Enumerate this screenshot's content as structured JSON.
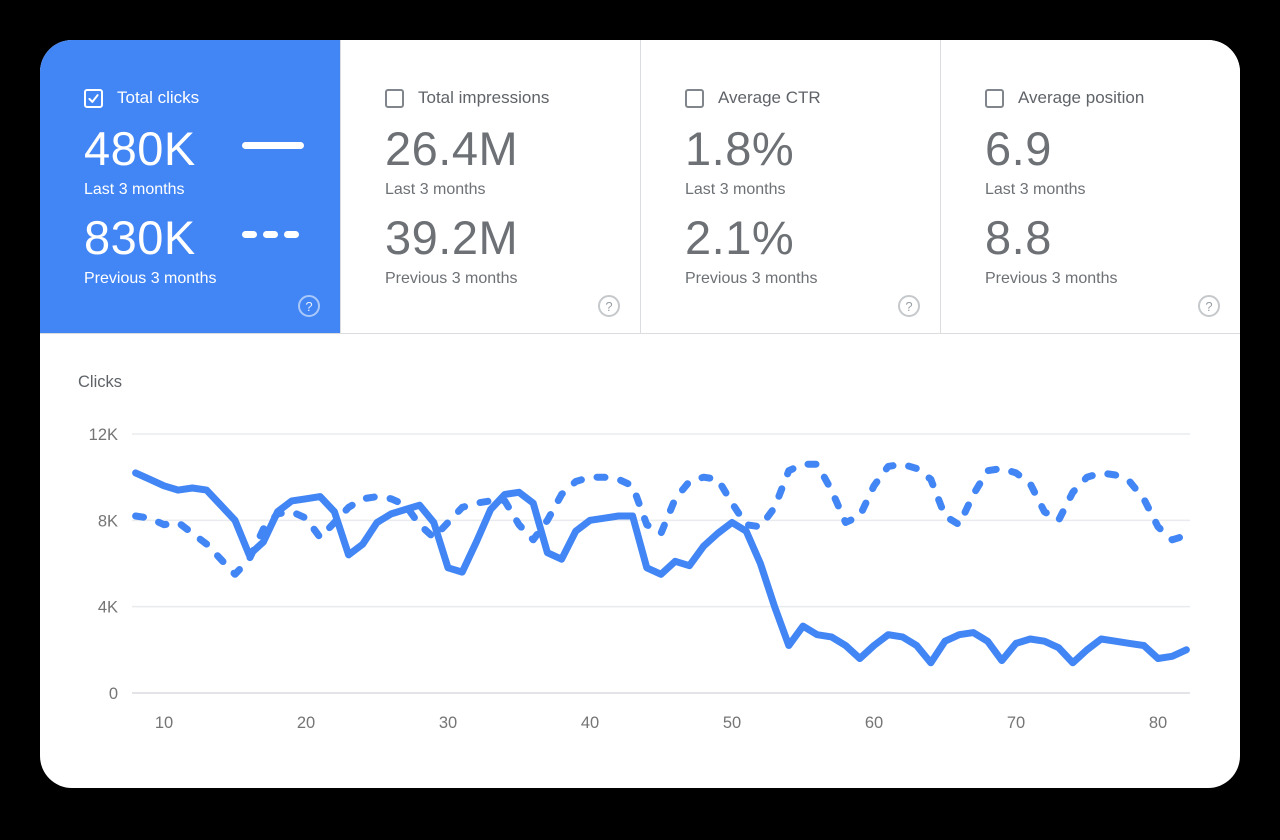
{
  "colors": {
    "accent_blue": "#4285f4",
    "grid_light": "#e9ebee",
    "grid_baseline": "#dadce0",
    "tick_gray": "#757575"
  },
  "ui": {
    "help_glyph": "?"
  },
  "metrics": [
    {
      "label": "Total clicks",
      "checked": true,
      "value_current": "480K",
      "period_current": "Last 3 months",
      "value_previous": "830K",
      "period_previous": "Previous 3 months"
    },
    {
      "label": "Total impressions",
      "checked": false,
      "value_current": "26.4M",
      "period_current": "Last 3 months",
      "value_previous": "39.2M",
      "period_previous": "Previous 3 months"
    },
    {
      "label": "Average CTR",
      "checked": false,
      "value_current": "1.8%",
      "period_current": "Last 3 months",
      "value_previous": "2.1%",
      "period_previous": "Previous 3 months"
    },
    {
      "label": "Average position",
      "checked": false,
      "value_current": "6.9",
      "period_current": "Last 3 months",
      "value_previous": "8.8",
      "period_previous": "Previous 3 months"
    }
  ],
  "chart_data": {
    "type": "line",
    "title": "Clicks",
    "ylabel": "Clicks",
    "grid": true,
    "legend_position": "inside selected metric card",
    "x": {
      "start": 8,
      "end": 82,
      "step": 1
    },
    "x_ticks": [
      10,
      20,
      30,
      40,
      50,
      60,
      70,
      80
    ],
    "ylim": [
      0,
      12000
    ],
    "y_axis": {
      "ticks": [
        {
          "label": "0",
          "value": 0
        },
        {
          "label": "4K",
          "value": 4000
        },
        {
          "label": "8K",
          "value": 8000
        },
        {
          "label": "12K",
          "value": 12000
        }
      ]
    },
    "series": [
      {
        "name": "Previous 3 months",
        "style": "dashed",
        "values": [
          8200,
          8100,
          7800,
          7900,
          7400,
          6900,
          6200,
          5500,
          6200,
          7600,
          8300,
          8400,
          8100,
          7200,
          7900,
          8600,
          9000,
          9100,
          9000,
          8700,
          7800,
          7200,
          7900,
          8600,
          8800,
          8900,
          8900,
          7800,
          7100,
          8000,
          9200,
          9800,
          10000,
          10000,
          9900,
          9600,
          7800,
          7400,
          9000,
          9800,
          10000,
          9900,
          8800,
          7800,
          7700,
          8600,
          10300,
          10600,
          10600,
          9400,
          7900,
          8200,
          9600,
          10500,
          10600,
          10400,
          9900,
          8200,
          7800,
          9200,
          10300,
          10400,
          10200,
          9700,
          8400,
          8000,
          9300,
          10000,
          10200,
          10100,
          9800,
          9000,
          7700,
          7100,
          7300
        ]
      },
      {
        "name": "Last 3 months",
        "style": "solid",
        "values": [
          10200,
          9900,
          9600,
          9400,
          9500,
          9400,
          8700,
          8000,
          6400,
          7000,
          8400,
          8900,
          9000,
          9100,
          8400,
          6400,
          6900,
          7900,
          8300,
          8500,
          8700,
          7900,
          5800,
          5600,
          7000,
          8500,
          9200,
          9300,
          8800,
          6500,
          6200,
          7500,
          8000,
          8100,
          8200,
          8200,
          5800,
          5500,
          6100,
          5900,
          6800,
          7400,
          7900,
          7500,
          6000,
          4000,
          2200,
          3100,
          2700,
          2600,
          2200,
          1600,
          2200,
          2700,
          2600,
          2200,
          1400,
          2400,
          2700,
          2800,
          2400,
          1500,
          2300,
          2500,
          2400,
          2100,
          1400,
          2000,
          2500,
          2400,
          2300,
          2200,
          1600,
          1700,
          2000
        ]
      }
    ]
  }
}
